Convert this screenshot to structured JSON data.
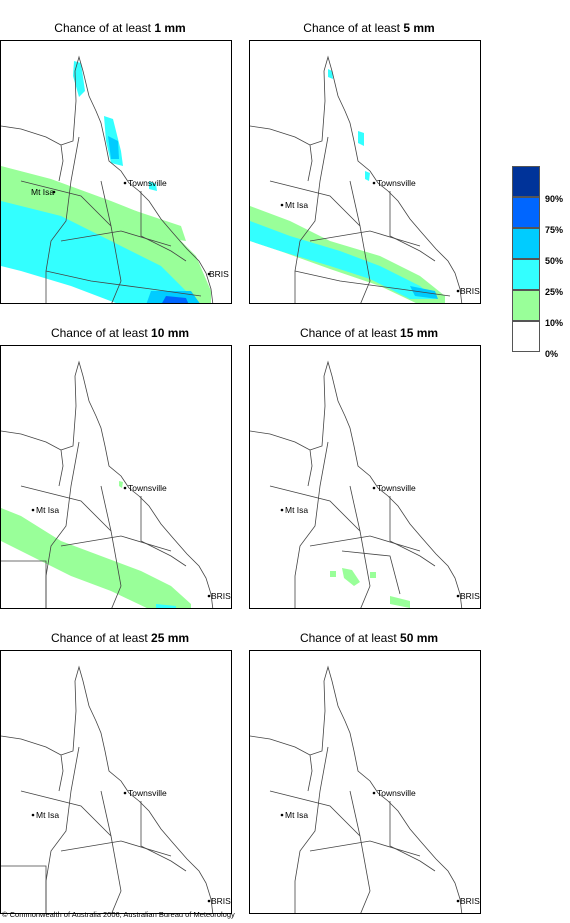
{
  "title_prefix": "Chance of at least",
  "panels": [
    {
      "threshold": "1 mm"
    },
    {
      "threshold": "5 mm"
    },
    {
      "threshold": "10 mm"
    },
    {
      "threshold": "15 mm"
    },
    {
      "threshold": "25 mm"
    },
    {
      "threshold": "50 mm"
    }
  ],
  "places": {
    "townsville": "Townsville",
    "mt_isa": "Mt Isa",
    "brisbane": "BRIS"
  },
  "legend": {
    "bins": [
      {
        "label": "90%",
        "color": "#003399"
      },
      {
        "label": "75%",
        "color": "#0066ff"
      },
      {
        "label": "50%",
        "color": "#00ccff"
      },
      {
        "label": "25%",
        "color": "#33ffff"
      },
      {
        "label": "10%",
        "color": "#99ff99"
      },
      {
        "label": "0%",
        "color": "#ffffff"
      }
    ]
  },
  "copyright": "© Commonwealth of Australia 2006, Australian Bureau of Meteorology"
}
